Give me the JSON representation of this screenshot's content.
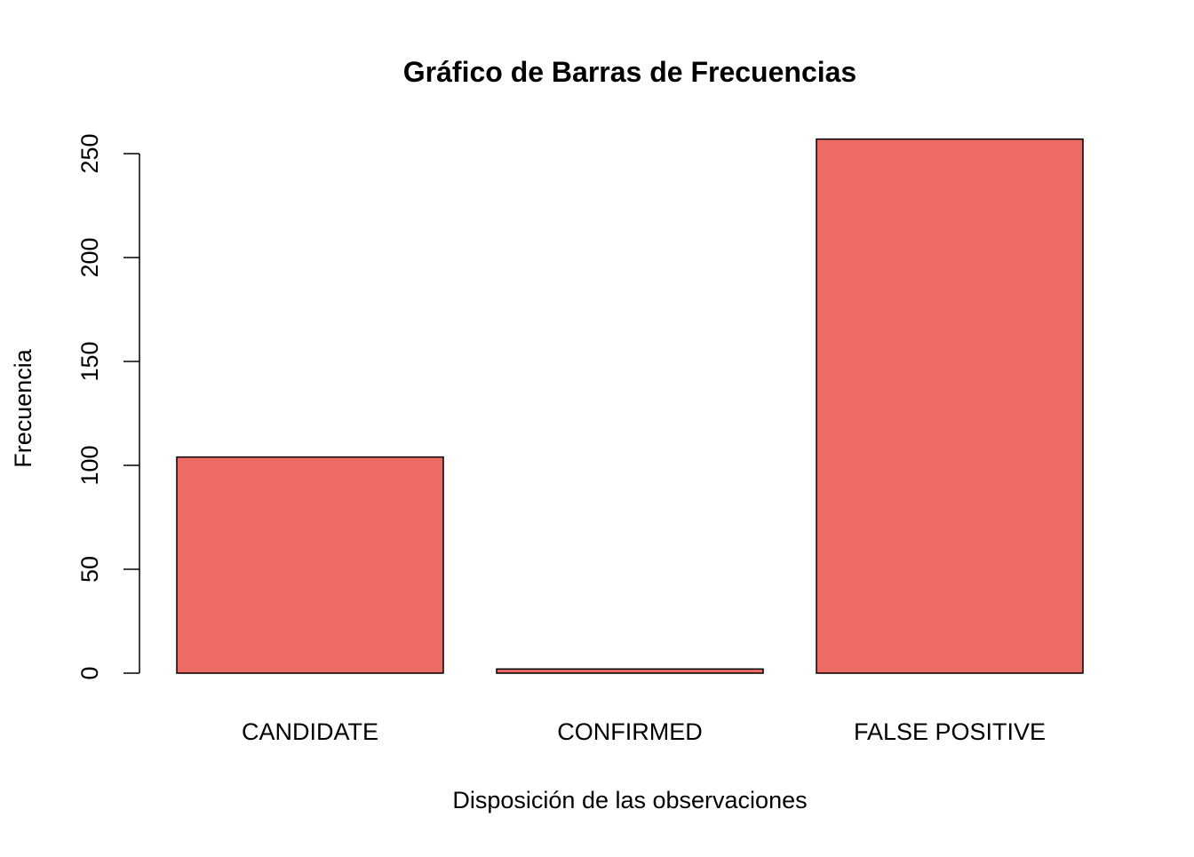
{
  "chart_data": {
    "type": "bar",
    "title": "Gráfico de Barras de Frecuencias",
    "xlabel": "Disposición de las observaciones",
    "ylabel": "Frecuencia",
    "categories": [
      "CANDIDATE",
      "CONFIRMED",
      "FALSE POSITIVE"
    ],
    "values": [
      104,
      2,
      257
    ],
    "y_ticks": [
      0,
      50,
      100,
      150,
      200,
      250
    ],
    "ylim": [
      0,
      257
    ],
    "grid": false,
    "legend": "none",
    "bar_color": "#EC6C65",
    "bar_outline_color": "#000000"
  }
}
